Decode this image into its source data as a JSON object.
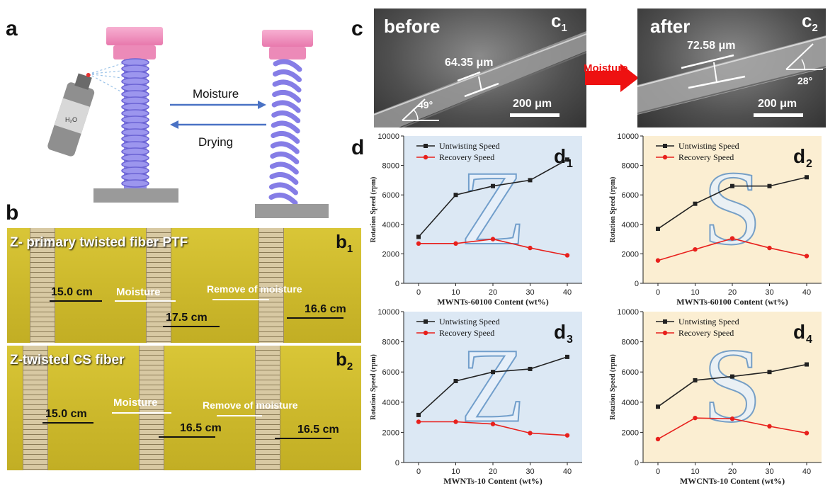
{
  "panel_labels": {
    "a": "a",
    "b": "b",
    "b1": "b",
    "b1_sub": "1",
    "b2": "b",
    "b2_sub": "2",
    "c": "c",
    "c1": "c",
    "c1_sub": "1",
    "c2": "c",
    "c2_sub": "2",
    "d": "d"
  },
  "panel_a": {
    "moisture": "Moisture",
    "drying": "Drying",
    "bottle_label": "H₂O"
  },
  "panel_b1": {
    "title": "Z- primary twisted fiber PTF",
    "len1": "15.0 cm",
    "arrow1": "Moisture",
    "len2": "17.5 cm",
    "arrow2": "Remove of moisture",
    "len3": "16.6 cm"
  },
  "panel_b2": {
    "title": "Z-twisted CS fiber",
    "len1": "15.0 cm",
    "arrow1": "Moisture",
    "len2": "16.5 cm",
    "arrow2": "Remove of moisture",
    "len3": "16.5 cm"
  },
  "panel_c": {
    "before": "before",
    "after": "after",
    "width_before": "64.35 μm",
    "width_after": "72.58 μm",
    "angle_before": "49°",
    "angle_after": "28°",
    "scale_before": "200 μm",
    "scale_after": "200 μm",
    "arrow": "Moisture"
  },
  "colors": {
    "untwisting": "#222222",
    "recovery": "#e8201c",
    "blue_bg": "#dce8f4",
    "yellow_bg": "#fbeed2",
    "arrow_red": "#ee1111"
  },
  "chart_data": [
    {
      "type": "line",
      "id": "d1",
      "label": "d",
      "label_sub": "1",
      "watermark": "Z",
      "bg": "blue",
      "x": [
        0,
        10,
        20,
        30,
        40
      ],
      "series": [
        {
          "name": "Untwisting Speed",
          "values": [
            3150,
            6000,
            6600,
            7000,
            8400
          ]
        },
        {
          "name": "Recovery Speed",
          "values": [
            2700,
            2700,
            3000,
            2400,
            1900
          ]
        }
      ],
      "xlabel": "MWNTs-60100 Content (wt%)",
      "ylabel": "Rotation Speed (rpm)",
      "ylim": [
        0,
        10000
      ],
      "yticks": [
        0,
        2000,
        4000,
        6000,
        8000,
        10000
      ],
      "legend": "top-left"
    },
    {
      "type": "line",
      "id": "d2",
      "label": "d",
      "label_sub": "2",
      "watermark": "S",
      "bg": "yellow",
      "x": [
        0,
        10,
        20,
        30,
        40
      ],
      "series": [
        {
          "name": "Untwisting Speed",
          "values": [
            3700,
            5400,
            6600,
            6600,
            7200
          ]
        },
        {
          "name": "Recovery Speed",
          "values": [
            1550,
            2300,
            3050,
            2400,
            1850
          ]
        }
      ],
      "xlabel": "MWNTs-60100 Content (wt%)",
      "ylabel": "Rotation Speed (rpm)",
      "ylim": [
        0,
        10000
      ],
      "yticks": [
        0,
        2000,
        4000,
        6000,
        8000,
        10000
      ],
      "legend": "top-left"
    },
    {
      "type": "line",
      "id": "d3",
      "label": "d",
      "label_sub": "3",
      "watermark": "Z",
      "bg": "blue",
      "x": [
        0,
        10,
        20,
        30,
        40
      ],
      "series": [
        {
          "name": "Untwisting Speed",
          "values": [
            3150,
            5400,
            6000,
            6200,
            7000
          ]
        },
        {
          "name": "Recovery Speed",
          "values": [
            2700,
            2700,
            2550,
            1950,
            1800
          ]
        }
      ],
      "xlabel": "MWNTs-10 Content (wt%)",
      "ylabel": "Rotation Speed (rpm)",
      "ylim": [
        0,
        10000
      ],
      "yticks": [
        0,
        2000,
        4000,
        6000,
        8000,
        10000
      ],
      "legend": "top-left"
    },
    {
      "type": "line",
      "id": "d4",
      "label": "d",
      "label_sub": "4",
      "watermark": "S",
      "bg": "yellow",
      "x": [
        0,
        10,
        20,
        30,
        40
      ],
      "series": [
        {
          "name": "Untwisting Speed",
          "values": [
            3700,
            5450,
            5700,
            6000,
            6500
          ]
        },
        {
          "name": "Recovery Speed",
          "values": [
            1550,
            2950,
            2900,
            2400,
            1950
          ]
        }
      ],
      "xlabel": "MWCNTs-10 Content (wt%)",
      "ylabel": "Rotation Speed (rpm)",
      "ylim": [
        0,
        10000
      ],
      "yticks": [
        0,
        2000,
        4000,
        6000,
        8000,
        10000
      ],
      "legend": "top-left"
    }
  ]
}
